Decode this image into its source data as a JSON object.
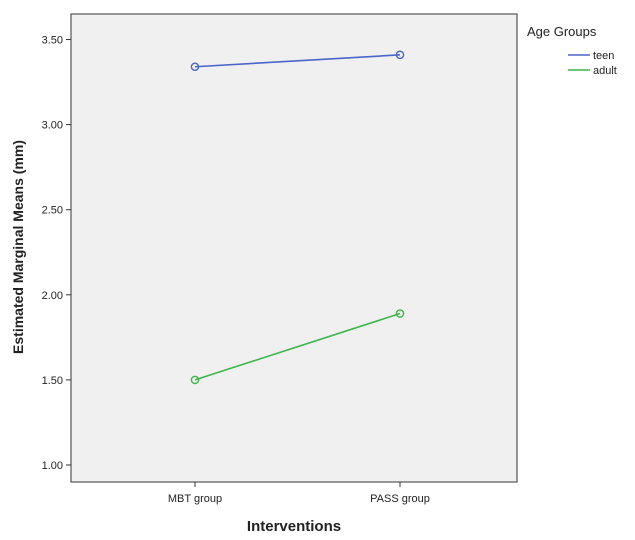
{
  "chart_data": {
    "type": "line",
    "title": "",
    "xlabel": "Interventions",
    "ylabel": "Estimated Marginal Means (mm)",
    "categories": [
      "MBT group",
      "PASS group"
    ],
    "ylim": [
      0.9,
      3.65
    ],
    "yticks": [
      "1.00",
      "1.50",
      "2.00",
      "2.50",
      "3.00",
      "3.50"
    ],
    "grid": false,
    "legend": {
      "title": "Age Groups",
      "placement": "outside-top-right"
    },
    "marker": "open-circle",
    "background": "#f0f0f0",
    "series": [
      {
        "name": "teen",
        "color": "#4a66c9",
        "values": [
          3.34,
          3.41
        ]
      },
      {
        "name": "adult",
        "color": "#3cb54a",
        "values": [
          1.5,
          1.89
        ]
      }
    ]
  }
}
